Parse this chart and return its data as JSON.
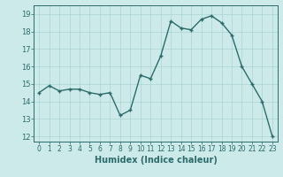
{
  "x": [
    0,
    1,
    2,
    3,
    4,
    5,
    6,
    7,
    8,
    9,
    10,
    11,
    12,
    13,
    14,
    15,
    16,
    17,
    18,
    19,
    20,
    21,
    22,
    23
  ],
  "y": [
    14.5,
    14.9,
    14.6,
    14.7,
    14.7,
    14.5,
    14.4,
    14.5,
    13.2,
    13.5,
    15.5,
    15.3,
    16.6,
    18.6,
    18.2,
    18.1,
    18.7,
    18.9,
    18.5,
    17.8,
    16.0,
    15.0,
    14.0,
    12.0
  ],
  "line_color": "#2d6b6b",
  "bg_color": "#cceaea",
  "grid_color": "#aad4d4",
  "xlabel": "Humidex (Indice chaleur)",
  "ylabel_ticks": [
    12,
    13,
    14,
    15,
    16,
    17,
    18,
    19
  ],
  "xlim": [
    -0.5,
    23.5
  ],
  "ylim": [
    11.7,
    19.5
  ],
  "marker": "+",
  "markersize": 3,
  "linewidth": 1.0,
  "tick_color": "#2d6b6b",
  "label_color": "#2d6b6b",
  "xlabel_fontsize": 7,
  "tick_fontsize": 5.5
}
